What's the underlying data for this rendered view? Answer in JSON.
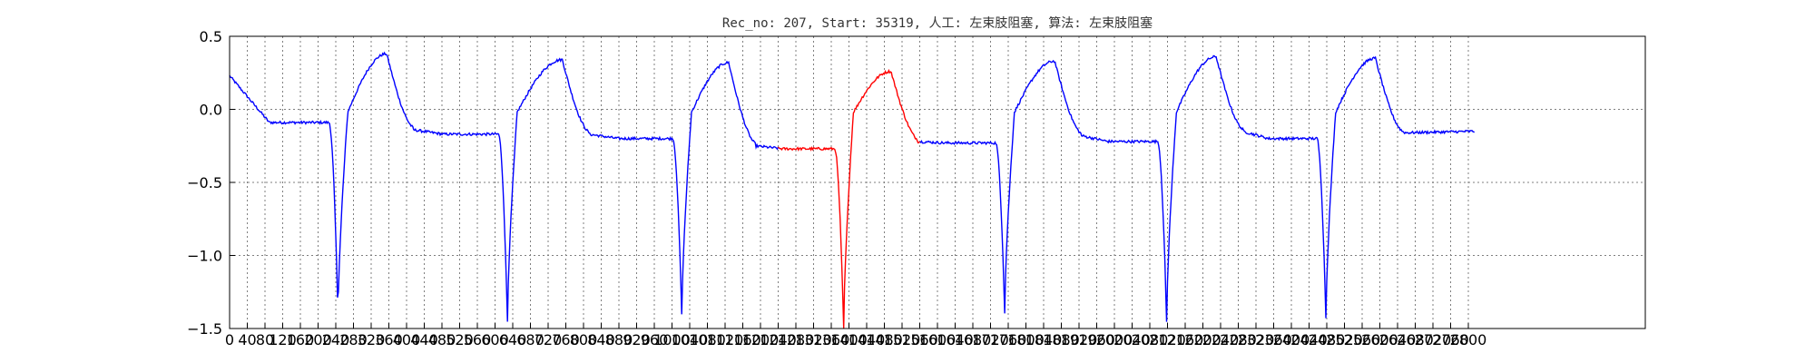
{
  "chart_data": {
    "type": "line",
    "title": "Rec_no: 207, Start: 35319, 人工: 左束肢阻塞, 算法: 左束肢阻塞",
    "xlabel": "",
    "ylabel": "",
    "xlim": [
      0,
      3200
    ],
    "ylim": [
      -1.5,
      0.5
    ],
    "yticks": [
      0.5,
      0.0,
      -0.5,
      -1.0,
      -1.5
    ],
    "ytick_labels": [
      "0.5",
      "0.0",
      "−0.5",
      "−1.0",
      "−1.5"
    ],
    "xtick_step": 40,
    "xtick_last": 2800,
    "grid": true,
    "colors": {
      "normal": "#0000ff",
      "highlight": "#ff0000",
      "grid": "#7f7f7f"
    },
    "beats": [
      {
        "baseline": -0.09,
        "r_position": 245,
        "r_depth": -1.4,
        "t_position": 355,
        "t_peak": 0.38,
        "post_level": -0.14,
        "color": "blue"
      },
      {
        "baseline": -0.17,
        "r_position": 628,
        "r_depth": -1.45,
        "t_position": 752,
        "t_peak": 0.34,
        "post_level": -0.17,
        "color": "blue"
      },
      {
        "baseline": -0.2,
        "r_position": 1022,
        "r_depth": -1.41,
        "t_position": 1128,
        "t_peak": 0.32,
        "post_level": -0.25,
        "color": "blue"
      },
      {
        "baseline": -0.27,
        "r_position": 1388,
        "r_depth": -1.5,
        "t_position": 1495,
        "t_peak": 0.26,
        "post_level": -0.22,
        "color": "red"
      },
      {
        "baseline": -0.23,
        "r_position": 1752,
        "r_depth": -1.39,
        "t_position": 1865,
        "t_peak": 0.33,
        "post_level": -0.18,
        "color": "blue"
      },
      {
        "baseline": -0.22,
        "r_position": 2118,
        "r_depth": -1.45,
        "t_position": 2230,
        "t_peak": 0.36,
        "post_level": -0.15,
        "color": "blue"
      },
      {
        "baseline": -0.2,
        "r_position": 2478,
        "r_depth": -1.43,
        "t_position": 2590,
        "t_peak": 0.35,
        "post_level": -0.16,
        "color": "blue"
      }
    ],
    "start_value": 0.23,
    "end_value": -0.15,
    "x_end": 2815,
    "highlight_range": [
      1240,
      1560
    ]
  }
}
